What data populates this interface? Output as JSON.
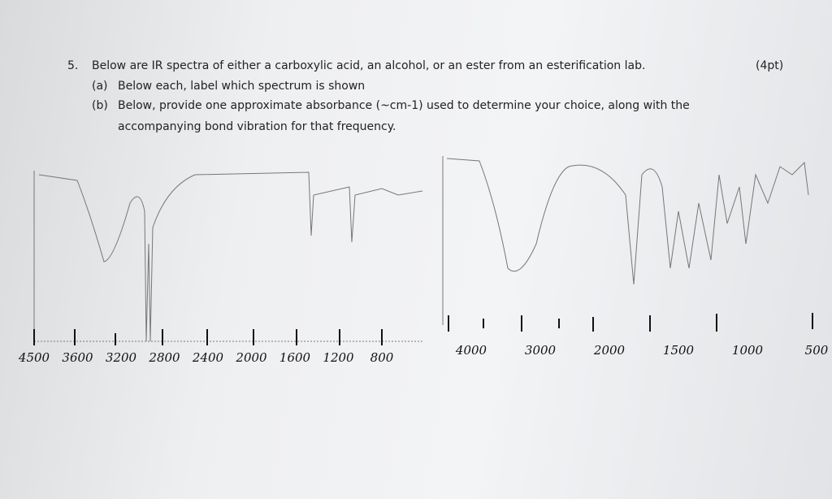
{
  "question": {
    "number": "5.",
    "text": "Below are IR spectra of either a carboxylic acid, an alcohol, or an ester from an esterification lab.",
    "points": "(4pt)",
    "parts": [
      {
        "label": "(a)",
        "text": "Below each, label which spectrum is shown"
      },
      {
        "label": "(b)",
        "text": "Below, provide one approximate absorbance (~cm-1) used to determine your choice, along with the",
        "continuation": "accompanying bond vibration for that frequency."
      }
    ]
  },
  "spectra": [
    {
      "axis_labels": [
        "4500",
        "3600",
        "3200",
        "2800",
        "2400",
        "2000",
        "1600",
        "1200",
        "800"
      ]
    },
    {
      "axis_labels": [
        "4000",
        "3000",
        "2000",
        "1500",
        "1000",
        "500"
      ]
    }
  ]
}
